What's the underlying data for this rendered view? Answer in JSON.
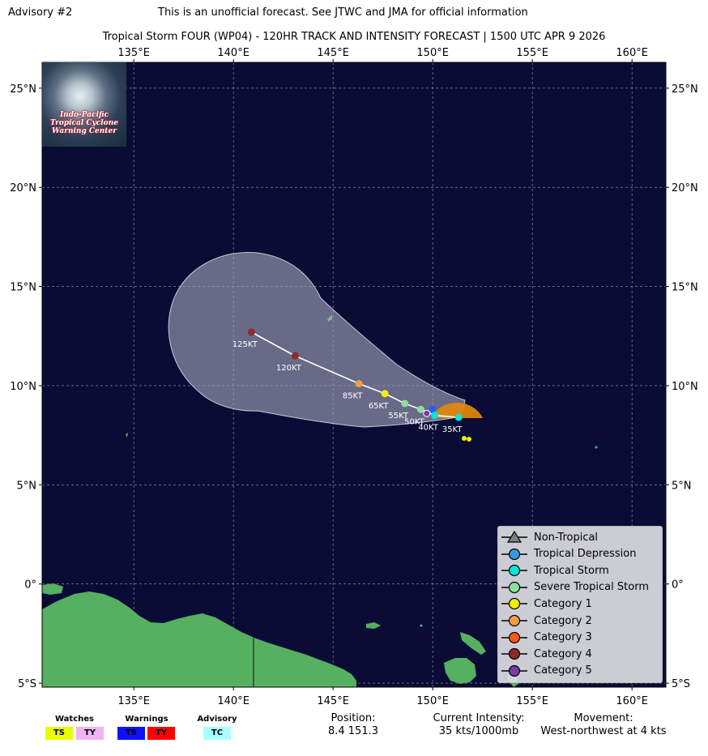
{
  "header": {
    "advisory": "Advisory #2",
    "disclaimer": "This is an unofficial forecast. See JTWC and JMA for official information",
    "title": "Tropical Storm FOUR (WP04) - 120HR TRACK AND INTENSITY FORECAST | 1500 UTC APR 9 2026"
  },
  "logo": {
    "text": "Indo-Pacific Tropical Cyclone Warning Center"
  },
  "map": {
    "lon_range": [
      130.4,
      161.7
    ],
    "lat_range": [
      -5.2,
      26.3
    ],
    "ocean_color": "#0b0c36",
    "land_color": "#55b060",
    "lon_ticks": [
      {
        "value": 135,
        "label": "135°E"
      },
      {
        "value": 140,
        "label": "140°E"
      },
      {
        "value": 145,
        "label": "145°E"
      },
      {
        "value": 150,
        "label": "150°E"
      },
      {
        "value": 155,
        "label": "155°E"
      },
      {
        "value": 160,
        "label": "160°E"
      }
    ],
    "lat_ticks": [
      {
        "value": 25,
        "label": "25°N"
      },
      {
        "value": 20,
        "label": "20°N"
      },
      {
        "value": 15,
        "label": "15°N"
      },
      {
        "value": 10,
        "label": "10°N"
      },
      {
        "value": 5,
        "label": "5°N"
      },
      {
        "value": 0,
        "label": "0°"
      },
      {
        "value": -5,
        "label": "5°S"
      }
    ]
  },
  "track": {
    "points": [
      {
        "lon": 151.3,
        "lat": 8.4,
        "color": "#00e5dc",
        "label": "35KT"
      },
      {
        "lon": 150.1,
        "lat": 8.5,
        "color": "#00e5dc",
        "label": "40KT"
      },
      {
        "lon": 149.4,
        "lat": 8.8,
        "color": "#8fe0a0",
        "label": "50KT"
      },
      {
        "lon": 148.6,
        "lat": 9.1,
        "color": "#8fe0a0",
        "label": "55KT"
      },
      {
        "lon": 147.6,
        "lat": 9.6,
        "color": "#f0f000",
        "label": "65KT"
      },
      {
        "lon": 146.3,
        "lat": 10.1,
        "color": "#f0a040",
        "label": "85KT"
      },
      {
        "lon": 143.1,
        "lat": 11.5,
        "color": "#8b2a2a",
        "label": "120KT"
      },
      {
        "lon": 140.9,
        "lat": 12.7,
        "color": "#8b2a2a",
        "label": "125KT"
      }
    ]
  },
  "legend": {
    "items": [
      {
        "label": "Non-Tropical",
        "color": "#7f7f7f",
        "shape": "triangle"
      },
      {
        "label": "Tropical Depression",
        "color": "#3498db",
        "shape": "circle"
      },
      {
        "label": "Tropical Storm",
        "color": "#00e5dc",
        "shape": "circle"
      },
      {
        "label": "Severe Tropical Storm",
        "color": "#8fe0a0",
        "shape": "circle"
      },
      {
        "label": "Category 1",
        "color": "#f0f000",
        "shape": "circle"
      },
      {
        "label": "Category 2",
        "color": "#f0a040",
        "shape": "circle"
      },
      {
        "label": "Category 3",
        "color": "#f05a1a",
        "shape": "circle"
      },
      {
        "label": "Category 4",
        "color": "#8b2a2a",
        "shape": "circle"
      },
      {
        "label": "Category 5",
        "color": "#7d3aa0",
        "shape": "circle"
      }
    ]
  },
  "footer": {
    "watches_title": "Watches",
    "warnings_title": "Warnings",
    "advisory_title": "Advisory",
    "badges": [
      {
        "label": "TS",
        "color": "#e8ff00",
        "text_color": "#000000"
      },
      {
        "label": "TY",
        "color": "#f0b4f0",
        "text_color": "#000000"
      },
      {
        "label": "TS",
        "color": "#1010ff",
        "text_color": "#000000"
      },
      {
        "label": "TY",
        "color": "#ff0000",
        "text_color": "#000000"
      },
      {
        "label": "TC",
        "color": "#a8ffff",
        "text_color": "#000000"
      }
    ],
    "position_label": "Position:",
    "position_value": "8.4 151.3",
    "intensity_label": "Current Intensity:",
    "intensity_value": "35 kts/1000mb",
    "movement_label": "Movement:",
    "movement_value": "West-northwest at 4 kts"
  }
}
